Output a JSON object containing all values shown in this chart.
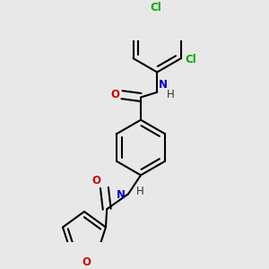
{
  "background_color": "#e8e8e8",
  "bond_color": "#000000",
  "bond_width": 1.5,
  "atom_colors": {
    "N": "#0000cc",
    "O": "#cc0000",
    "Cl": "#00aa00",
    "H": "#333333"
  },
  "font_size": 8.5,
  "figsize": [
    3.0,
    3.0
  ],
  "dpi": 100
}
